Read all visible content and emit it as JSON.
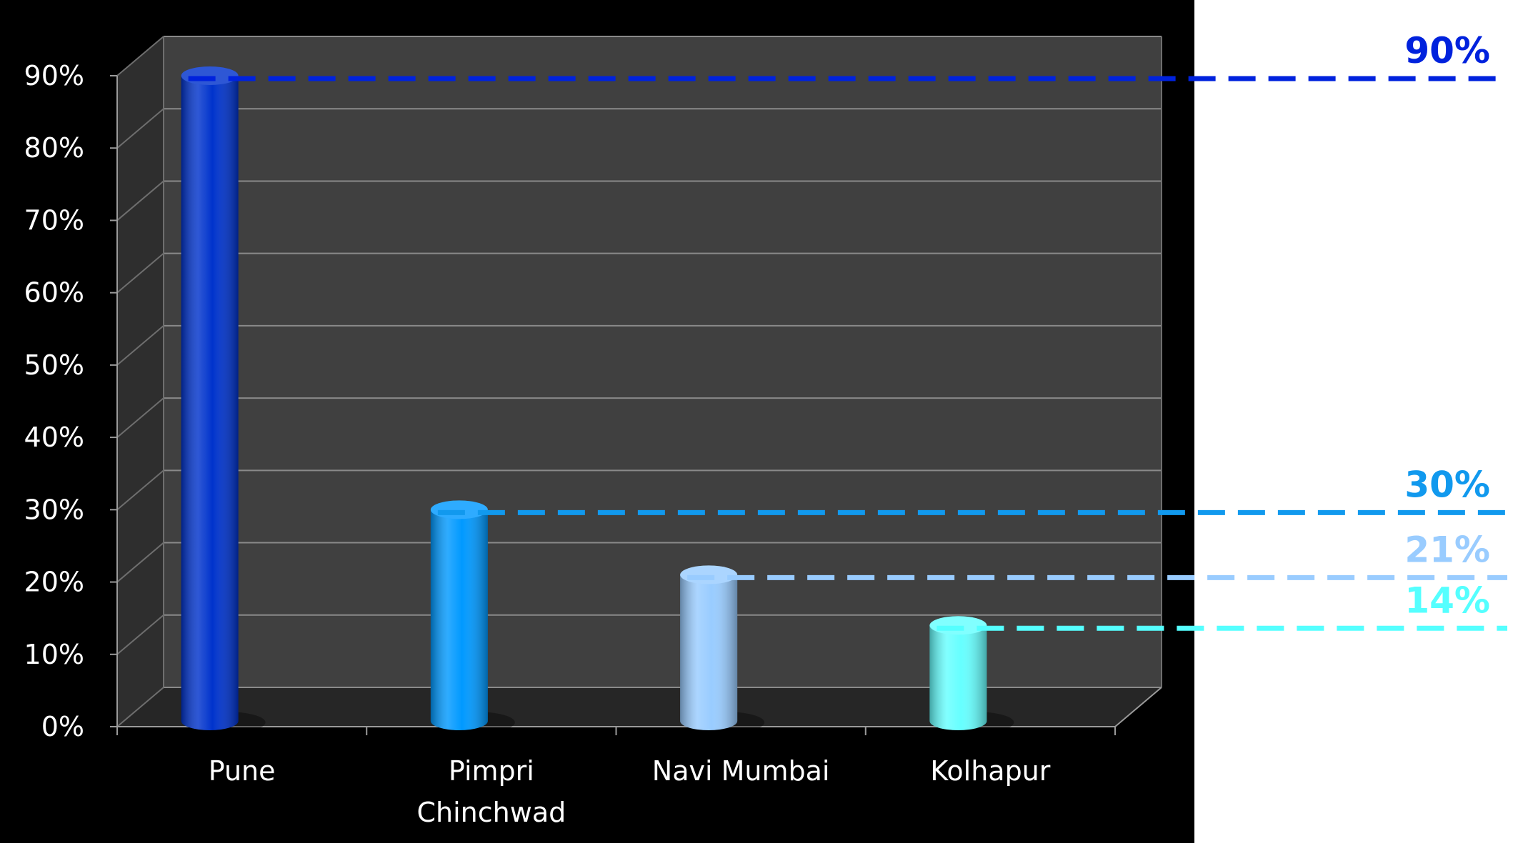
{
  "chart_data": {
    "type": "bar",
    "categories": [
      "Pune",
      "Pimpri Chinchwad",
      "Navi Mumbai",
      "Kolhapur"
    ],
    "category_lines": [
      [
        "Pune"
      ],
      [
        "Pimpri",
        "Chinchwad"
      ],
      [
        "Navi Mumbai"
      ],
      [
        "Kolhapur"
      ]
    ],
    "series": [
      {
        "values": [
          90,
          30,
          21,
          14
        ]
      }
    ],
    "bar_colors": [
      "#0033cc",
      "#0099ff",
      "#99ccff",
      "#66ffff"
    ],
    "ylim": [
      0,
      90
    ],
    "yticks": [
      0,
      10,
      20,
      30,
      40,
      50,
      60,
      70,
      80,
      90
    ],
    "ytick_labels": [
      "0%",
      "10%",
      "20%",
      "30%",
      "40%",
      "50%",
      "60%",
      "70%",
      "80%",
      "90%"
    ],
    "annotations": [
      {
        "text": "90%",
        "value": 90,
        "color": "#0022dd"
      },
      {
        "text": "30%",
        "value": 30,
        "color": "#1199ee"
      },
      {
        "text": "21%",
        "value": 21,
        "color": "#99ccff"
      },
      {
        "text": "14%",
        "value": 14,
        "color": "#55ffff"
      }
    ],
    "grid": true,
    "style": "3d-cylinder",
    "background": "#000000",
    "plot_background": "#404040"
  }
}
